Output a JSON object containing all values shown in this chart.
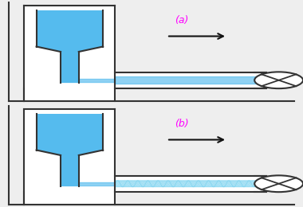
{
  "bg_color": "#f2f2f2",
  "pipe_color": "#333333",
  "fluid_blue": "#55bbee",
  "fluid_blue_light": "#aaddff",
  "fluid_blue_turb": "#66ccee",
  "label_a": "(a)",
  "label_b": "(b)",
  "label_color": "#ff00ff",
  "label_fontsize": 9,
  "arrow_color": "#111111",
  "valve_color": "#333333"
}
